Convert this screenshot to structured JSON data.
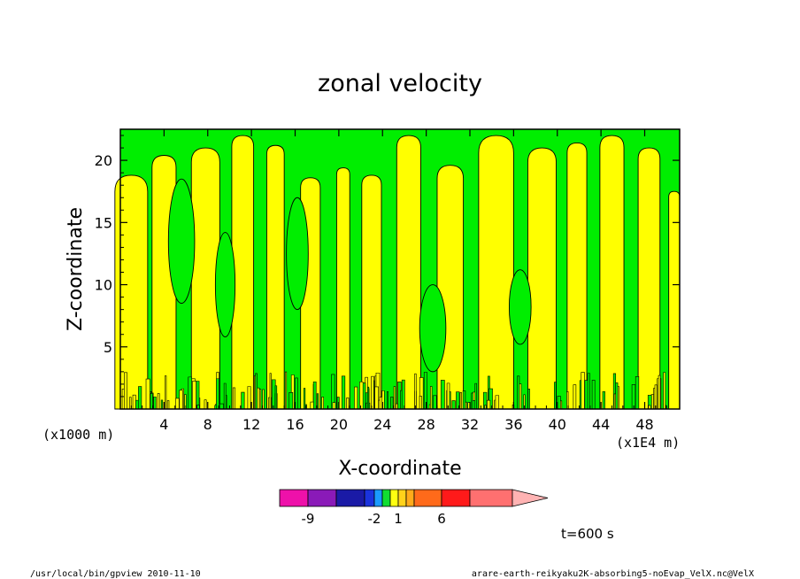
{
  "chart_data": {
    "type": "heatmap",
    "title": "zonal velocity",
    "xlabel": "X-coordinate",
    "ylabel": "Z-coordinate",
    "x_unit_left": "(x1000 m)",
    "x_unit_right": "(x1E4 m)",
    "x_ticks": [
      4,
      8,
      12,
      16,
      20,
      24,
      28,
      32,
      36,
      40,
      44,
      48
    ],
    "y_ticks": [
      5,
      10,
      15,
      20
    ],
    "xlim": [
      0,
      51.2
    ],
    "ylim": [
      0,
      22.5
    ],
    "time_label": "t=600 s",
    "colorbar": {
      "labels": [
        {
          "value": -9,
          "text": "-9"
        },
        {
          "value": -2,
          "text": "-2"
        },
        {
          "value": 1,
          "text": "1"
        },
        {
          "value": 6,
          "text": "6"
        }
      ],
      "colors": [
        "#ee11aa",
        "#8a1ab8",
        "#1a1aa6",
        "#1a33dd",
        "#1a9aff",
        "#11dd33",
        "#ffff11",
        "#ffd21a",
        "#ffaa1a",
        "#ff6a1a",
        "#ff1a1a",
        "#ff7070",
        "#ffb3b3"
      ],
      "level_bounds": [
        -12,
        -9,
        -6,
        -3,
        -2,
        -1,
        0,
        1,
        2,
        3,
        6,
        9,
        12
      ]
    },
    "field_colors": {
      "positive": "#ffff00",
      "negative": "#00ee00",
      "contour": "#000000"
    }
  },
  "footer": {
    "left": "/usr/local/bin/gpview   2010-11-10",
    "right": "arare-earth-reikyaku2K-absorbing5-noEvap_VelX.nc@VelX"
  }
}
